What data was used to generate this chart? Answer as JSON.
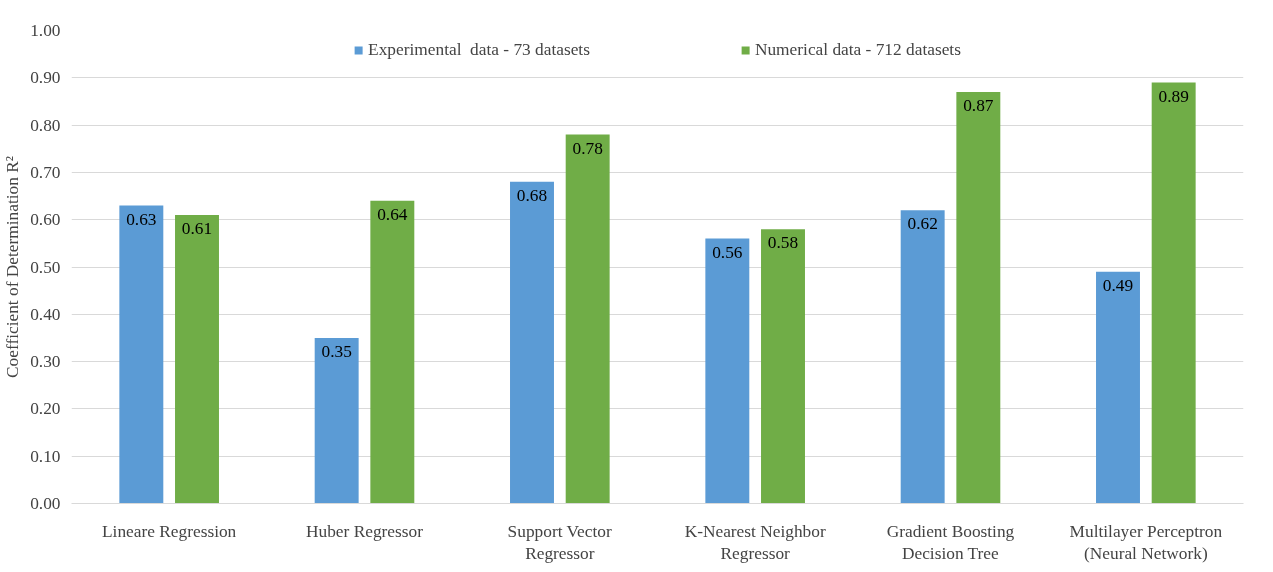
{
  "chart_data": {
    "type": "bar",
    "ylabel": "Coefficient of Determination R²",
    "categories": [
      "Lineare Regression",
      "Huber Regressor",
      "Support Vector\nRegressor",
      "K-Nearest Neighbor\nRegressor",
      "Gradient Boosting\nDecision Tree",
      "Multilayer Perceptron\n(Neural Network)"
    ],
    "series": [
      {
        "name": "Experimental  data - 73 datasets",
        "color": "#5b9bd5",
        "values": [
          0.63,
          0.35,
          0.68,
          0.56,
          0.62,
          0.49
        ]
      },
      {
        "name": "Numerical data - 712 datasets",
        "color": "#70ad47",
        "values": [
          0.61,
          0.64,
          0.78,
          0.58,
          0.87,
          0.89
        ]
      }
    ],
    "ylim": [
      0,
      1
    ],
    "yticks": [
      {
        "value": 0,
        "label": "0.00"
      },
      {
        "value": 0.1,
        "label": "0.10"
      },
      {
        "value": 0.2,
        "label": "0.20"
      },
      {
        "value": 0.3,
        "label": "0.30"
      },
      {
        "value": 0.4,
        "label": "0.40"
      },
      {
        "value": 0.5,
        "label": "0.50"
      },
      {
        "value": 0.6,
        "label": "0.60"
      },
      {
        "value": 0.7,
        "label": "0.70"
      },
      {
        "value": 0.8,
        "label": "0.80"
      },
      {
        "value": 0.9,
        "label": "0.90"
      },
      {
        "value": 1.0,
        "label": "1.00"
      }
    ],
    "grid": "y",
    "legend": "top",
    "data_labels": true
  }
}
